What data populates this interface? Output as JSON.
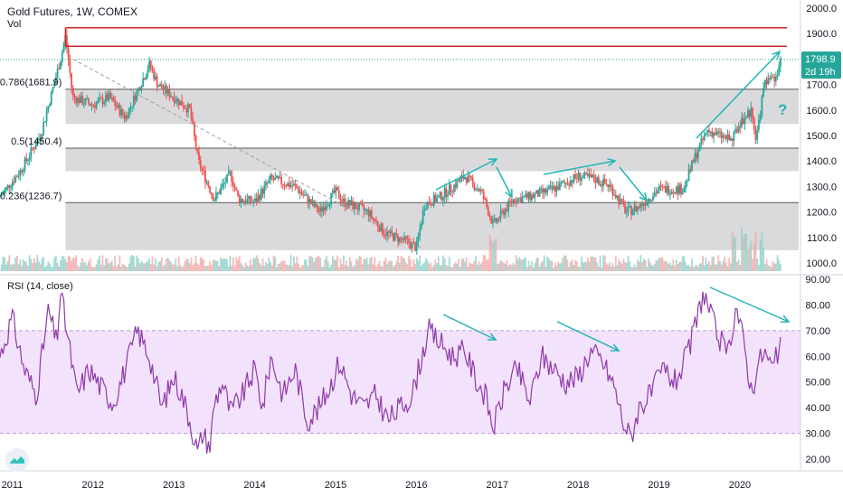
{
  "header": {
    "title": "Gold Futures, 1W, COMEX",
    "volume_label": "Vol",
    "rsi_label": "RSI (14, close)"
  },
  "price_tag": {
    "price": "1798.9",
    "countdown": "2d 19h"
  },
  "annotations": {
    "question_mark": "?"
  },
  "colors": {
    "up": "#26a69a",
    "down": "#ef5350",
    "resistance": "#c62828",
    "fib_zone": "#d6d6d9",
    "arrow": "#22b5b5",
    "rsi_line": "#8e3aa8",
    "rsi_band": "#f3e2fb",
    "price_tag_bg": "#26a69a"
  },
  "chart_data": [
    {
      "type": "candlestick",
      "title": "Gold Futures, 1W, COMEX",
      "x_ticks": [
        "2011",
        "2012",
        "2013",
        "2014",
        "2015",
        "2016",
        "2017",
        "2018",
        "2019",
        "2020"
      ],
      "y_ticks": [
        "2000.0",
        "1900.0",
        "1800.0",
        "1700.0",
        "1600.0",
        "1500.0",
        "1400.0",
        "1300.0",
        "1200.0",
        "1100.0",
        "1000.0"
      ],
      "ylim": [
        960,
        2000
      ],
      "xlim": [
        2010.85,
        2020.75
      ],
      "last_price": 1798.9,
      "fib_levels": [
        {
          "label": "0.786(1681.9)",
          "value": 1681.9
        },
        {
          "label": "0.5(1450.4)",
          "value": 1450.4
        },
        {
          "label": "0.236(1236.7)",
          "value": 1236.7
        }
      ],
      "resistance_lines": [
        1923,
        1850
      ],
      "series": [
        {
          "x": [
            2010.85,
            2011.1,
            2011.35,
            2011.6,
            2011.66,
            2011.75,
            2012.0,
            2012.2,
            2012.4,
            2012.7,
            2012.8,
            2013.0,
            2013.2,
            2013.3,
            2013.5,
            2013.7,
            2013.8,
            2014.0,
            2014.2,
            2014.5,
            2014.8,
            2015.0,
            2015.1,
            2015.4,
            2015.6,
            2015.9,
            2016.0,
            2016.1,
            2016.3,
            2016.6,
            2016.8,
            2016.95,
            2017.2,
            2017.4,
            2017.7,
            2018.0,
            2018.2,
            2018.4,
            2018.6,
            2018.75,
            2019.0,
            2019.3,
            2019.45,
            2019.6,
            2019.75,
            2019.9,
            2020.0,
            2020.15,
            2020.2,
            2020.3,
            2020.45,
            2020.5
          ],
          "y": [
            1260,
            1360,
            1500,
            1800,
            1890,
            1650,
            1620,
            1650,
            1570,
            1780,
            1700,
            1650,
            1600,
            1400,
            1250,
            1350,
            1250,
            1240,
            1330,
            1300,
            1200,
            1280,
            1240,
            1200,
            1120,
            1080,
            1060,
            1230,
            1260,
            1340,
            1280,
            1150,
            1250,
            1260,
            1290,
            1340,
            1330,
            1300,
            1200,
            1220,
            1290,
            1290,
            1420,
            1520,
            1500,
            1480,
            1550,
            1600,
            1480,
            1700,
            1720,
            1798.9
          ]
        }
      ],
      "volume": true
    },
    {
      "type": "line",
      "title": "RSI (14, close)",
      "y_ticks": [
        "90.00",
        "80.00",
        "70.00",
        "60.00",
        "50.00",
        "40.00",
        "30.00",
        "20.00"
      ],
      "ylim": [
        15,
        92
      ],
      "band": [
        30,
        70
      ],
      "series": [
        {
          "x": [
            2010.85,
            2011.0,
            2011.15,
            2011.3,
            2011.45,
            2011.55,
            2011.6,
            2011.7,
            2011.8,
            2011.95,
            2012.1,
            2012.25,
            2012.4,
            2012.55,
            2012.7,
            2012.85,
            2013.0,
            2013.1,
            2013.2,
            2013.3,
            2013.35,
            2013.45,
            2013.5,
            2013.6,
            2013.7,
            2013.85,
            2014.0,
            2014.1,
            2014.2,
            2014.35,
            2014.5,
            2014.65,
            2014.8,
            2014.95,
            2015.05,
            2015.2,
            2015.35,
            2015.5,
            2015.65,
            2015.8,
            2015.95,
            2016.05,
            2016.15,
            2016.3,
            2016.45,
            2016.6,
            2016.75,
            2016.85,
            2016.95,
            2017.1,
            2017.25,
            2017.4,
            2017.55,
            2017.7,
            2017.85,
            2018.0,
            2018.15,
            2018.3,
            2018.45,
            2018.55,
            2018.65,
            2018.75,
            2018.9,
            2019.05,
            2019.2,
            2019.35,
            2019.45,
            2019.55,
            2019.7,
            2019.85,
            2019.95,
            2020.05,
            2020.15,
            2020.2,
            2020.3,
            2020.4,
            2020.5
          ],
          "y": [
            60,
            75,
            55,
            45,
            78,
            65,
            85,
            65,
            45,
            55,
            48,
            42,
            55,
            70,
            60,
            40,
            52,
            45,
            35,
            22,
            30,
            25,
            42,
            50,
            38,
            45,
            55,
            40,
            60,
            45,
            55,
            35,
            40,
            50,
            58,
            45,
            40,
            45,
            35,
            40,
            45,
            58,
            70,
            65,
            60,
            62,
            50,
            45,
            32,
            48,
            55,
            42,
            60,
            55,
            50,
            52,
            62,
            58,
            48,
            35,
            28,
            40,
            45,
            55,
            50,
            60,
            72,
            85,
            70,
            60,
            80,
            65,
            45,
            55,
            62,
            55,
            63
          ]
        }
      ]
    }
  ]
}
